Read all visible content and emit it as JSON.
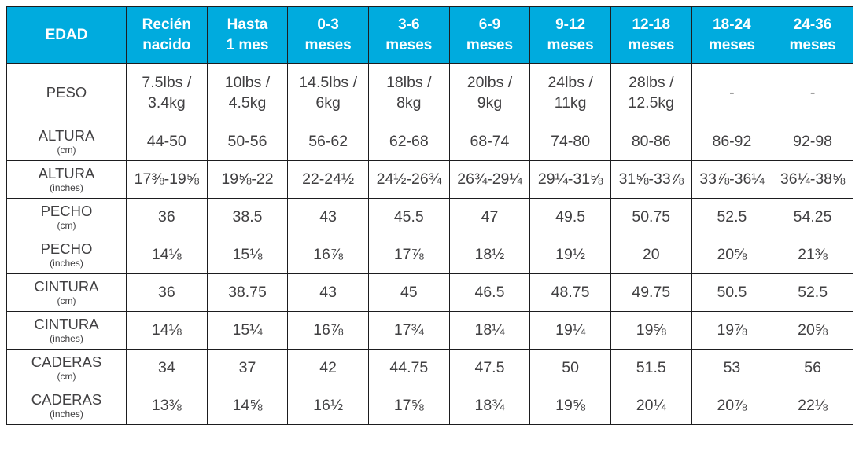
{
  "colors": {
    "header_bg": "#00abde",
    "header_text": "#ffffff",
    "body_text": "#414042",
    "border": "#1d1d1f"
  },
  "table": {
    "header": {
      "corner": "EDAD",
      "columns": [
        "Recién\nnacido",
        "Hasta\n1 mes",
        "0-3\nmeses",
        "3-6\nmeses",
        "6-9\nmeses",
        "9-12\nmeses",
        "12-18\nmeses",
        "18-24\nmeses",
        "24-36\nmeses"
      ]
    },
    "rows": [
      {
        "label": "PESO",
        "unit": "",
        "values": [
          "7.5lbs /\n3.4kg",
          "10lbs /\n4.5kg",
          "14.5lbs /\n6kg",
          "18lbs /\n8kg",
          "20lbs /\n9kg",
          "24lbs /\n11kg",
          "28lbs /\n12.5kg",
          "-",
          "-"
        ]
      },
      {
        "label": "ALTURA",
        "unit": "(cm)",
        "values": [
          "44-50",
          "50-56",
          "56-62",
          "62-68",
          "68-74",
          "74-80",
          "80-86",
          "86-92",
          "92-98"
        ]
      },
      {
        "label": "ALTURA",
        "unit": "(inches)",
        "values": [
          "17⅜-19⅝",
          "19⅝-22",
          "22-24½",
          "24½-26¾",
          "26¾-29¼",
          "29¼-31⅝",
          "31⅝-33⅞",
          "33⅞-36¼",
          "36¼-38⅝"
        ]
      },
      {
        "label": "PECHO",
        "unit": "(cm)",
        "values": [
          "36",
          "38.5",
          "43",
          "45.5",
          "47",
          "49.5",
          "50.75",
          "52.5",
          "54.25"
        ]
      },
      {
        "label": "PECHO",
        "unit": "(inches)",
        "values": [
          "14⅛",
          "15⅛",
          "16⅞",
          "17⅞",
          "18½",
          "19½",
          "20",
          "20⅝",
          "21⅜"
        ]
      },
      {
        "label": "CINTURA",
        "unit": "(cm)",
        "values": [
          "36",
          "38.75",
          "43",
          "45",
          "46.5",
          "48.75",
          "49.75",
          "50.5",
          "52.5"
        ]
      },
      {
        "label": "CINTURA",
        "unit": "(inches)",
        "values": [
          "14⅛",
          "15¼",
          "16⅞",
          "17¾",
          "18¼",
          "19¼",
          "19⅝",
          "19⅞",
          "20⅝"
        ]
      },
      {
        "label": "CADERAS",
        "unit": "(cm)",
        "values": [
          "34",
          "37",
          "42",
          "44.75",
          "47.5",
          "50",
          "51.5",
          "53",
          "56"
        ]
      },
      {
        "label": "CADERAS",
        "unit": "(inches)",
        "values": [
          "13⅜",
          "14⅝",
          "16½",
          "17⅝",
          "18¾",
          "19⅝",
          "20¼",
          "20⅞",
          "22⅛"
        ]
      }
    ]
  },
  "chart_data": {
    "type": "table",
    "title": "Tabla de tallas por edad (size chart)",
    "columns": [
      "EDAD",
      "Recién nacido",
      "Hasta 1 mes",
      "0-3 meses",
      "3-6 meses",
      "6-9 meses",
      "9-12 meses",
      "12-18 meses",
      "18-24 meses",
      "24-36 meses"
    ],
    "rows": [
      [
        "PESO",
        "7.5lbs / 3.4kg",
        "10lbs / 4.5kg",
        "14.5lbs / 6kg",
        "18lbs / 8kg",
        "20lbs / 9kg",
        "24lbs / 11kg",
        "28lbs / 12.5kg",
        "-",
        "-"
      ],
      [
        "ALTURA (cm)",
        "44-50",
        "50-56",
        "56-62",
        "62-68",
        "68-74",
        "74-80",
        "80-86",
        "86-92",
        "92-98"
      ],
      [
        "ALTURA (inches)",
        "17⅜-19⅝",
        "19⅝-22",
        "22-24½",
        "24½-26¾",
        "26¾-29¼",
        "29¼-31⅝",
        "31⅝-33⅞",
        "33⅞-36¼",
        "36¼-38⅝"
      ],
      [
        "PECHO (cm)",
        "36",
        "38.5",
        "43",
        "45.5",
        "47",
        "49.5",
        "50.75",
        "52.5",
        "54.25"
      ],
      [
        "PECHO (inches)",
        "14⅛",
        "15⅛",
        "16⅞",
        "17⅞",
        "18½",
        "19½",
        "20",
        "20⅝",
        "21⅜"
      ],
      [
        "CINTURA (cm)",
        "36",
        "38.75",
        "43",
        "45",
        "46.5",
        "48.75",
        "49.75",
        "50.5",
        "52.5"
      ],
      [
        "CINTURA (inches)",
        "14⅛",
        "15¼",
        "16⅞",
        "17¾",
        "18¼",
        "19¼",
        "19⅝",
        "19⅞",
        "20⅝"
      ],
      [
        "CADERAS (cm)",
        "34",
        "37",
        "42",
        "44.75",
        "47.5",
        "50",
        "51.5",
        "53",
        "56"
      ],
      [
        "CADERAS (inches)",
        "13⅜",
        "14⅝",
        "16½",
        "17⅝",
        "18¾",
        "19⅝",
        "20¼",
        "20⅞",
        "22⅛"
      ]
    ]
  }
}
